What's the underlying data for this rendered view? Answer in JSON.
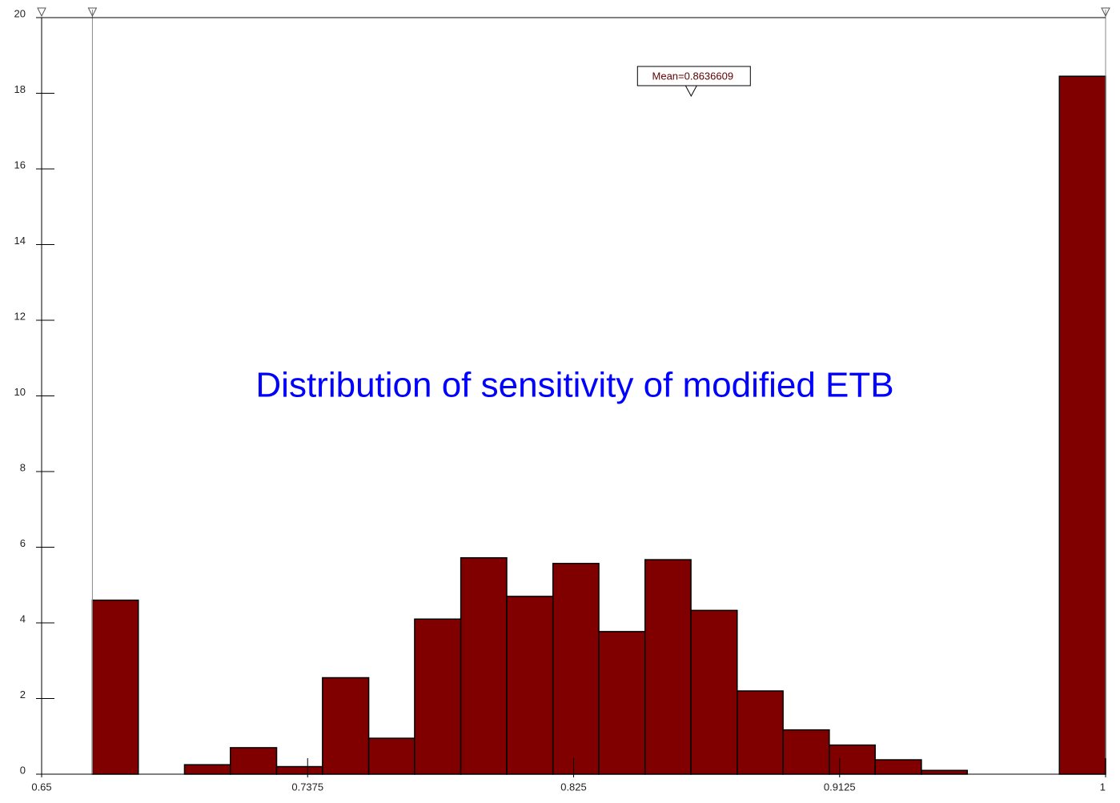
{
  "chart_data": {
    "type": "histogram",
    "title": "Distribution of sensitivity of modified ETB",
    "bins": [
      0.6667,
      0.6818,
      0.697,
      0.7121,
      0.7273,
      0.7424,
      0.7576,
      0.7727,
      0.7879,
      0.803,
      0.8182,
      0.8333,
      0.8485,
      0.8636,
      0.8788,
      0.8939,
      0.9091,
      0.9242,
      0.9394,
      0.9545,
      0.9697,
      0.9848,
      1.0
    ],
    "values": [
      4.6,
      0,
      0.25,
      0.7,
      0.2,
      2.55,
      0.95,
      4.1,
      5.72,
      4.7,
      5.57,
      3.77,
      5.67,
      4.33,
      2.2,
      1.17,
      0.77,
      0.38,
      0.1,
      0,
      0,
      18.45
    ],
    "color": "#800000",
    "xlim": [
      0.65,
      1
    ],
    "xticks": [
      0.65,
      0.7375,
      0.825,
      0.9125,
      1
    ],
    "ylim": [
      0,
      20
    ],
    "yticks": [
      0,
      2,
      4,
      6,
      8,
      10,
      12,
      14,
      16,
      18,
      20
    ],
    "mean": {
      "value": 0.8636609,
      "label": "Mean=0.8636609"
    }
  }
}
